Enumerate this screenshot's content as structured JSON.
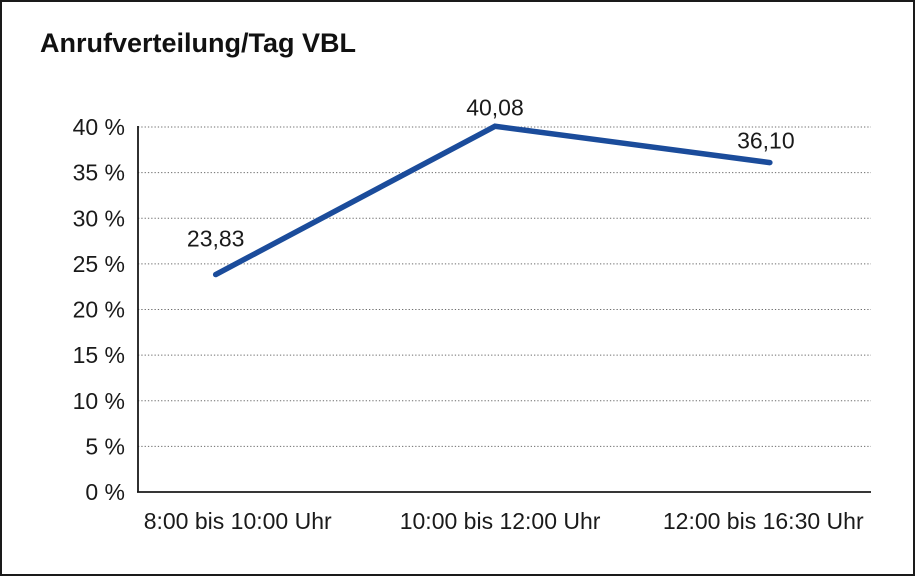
{
  "chart_data": {
    "type": "line",
    "title": "Anrufverteilung/Tag VBL",
    "categories": [
      "8:00 bis 10:00 Uhr",
      "10:00 bis 12:00 Uhr",
      "12:00 bis 16:30 Uhr"
    ],
    "values": [
      23.83,
      40.08,
      36.1
    ],
    "data_labels": [
      "23,83",
      "40,08",
      "36,10"
    ],
    "xlabel": "",
    "ylabel": "",
    "ylim": [
      0,
      40
    ],
    "ytick_step": 5,
    "ytick_suffix": " %",
    "ytick_labels": [
      "0 %",
      "5 %",
      "10 %",
      "15 %",
      "20 %",
      "25 %",
      "30 %",
      "35 %",
      "40 %"
    ],
    "grid": "horizontal dotted",
    "legend": "none",
    "colors": {
      "series_line": "#1B4C9B",
      "gridline": "#6e6e6e",
      "axis": "#1a1a1a",
      "text": "#1a1a1a",
      "background": "#ffffff",
      "frame_border": "#1a1a1a"
    }
  }
}
